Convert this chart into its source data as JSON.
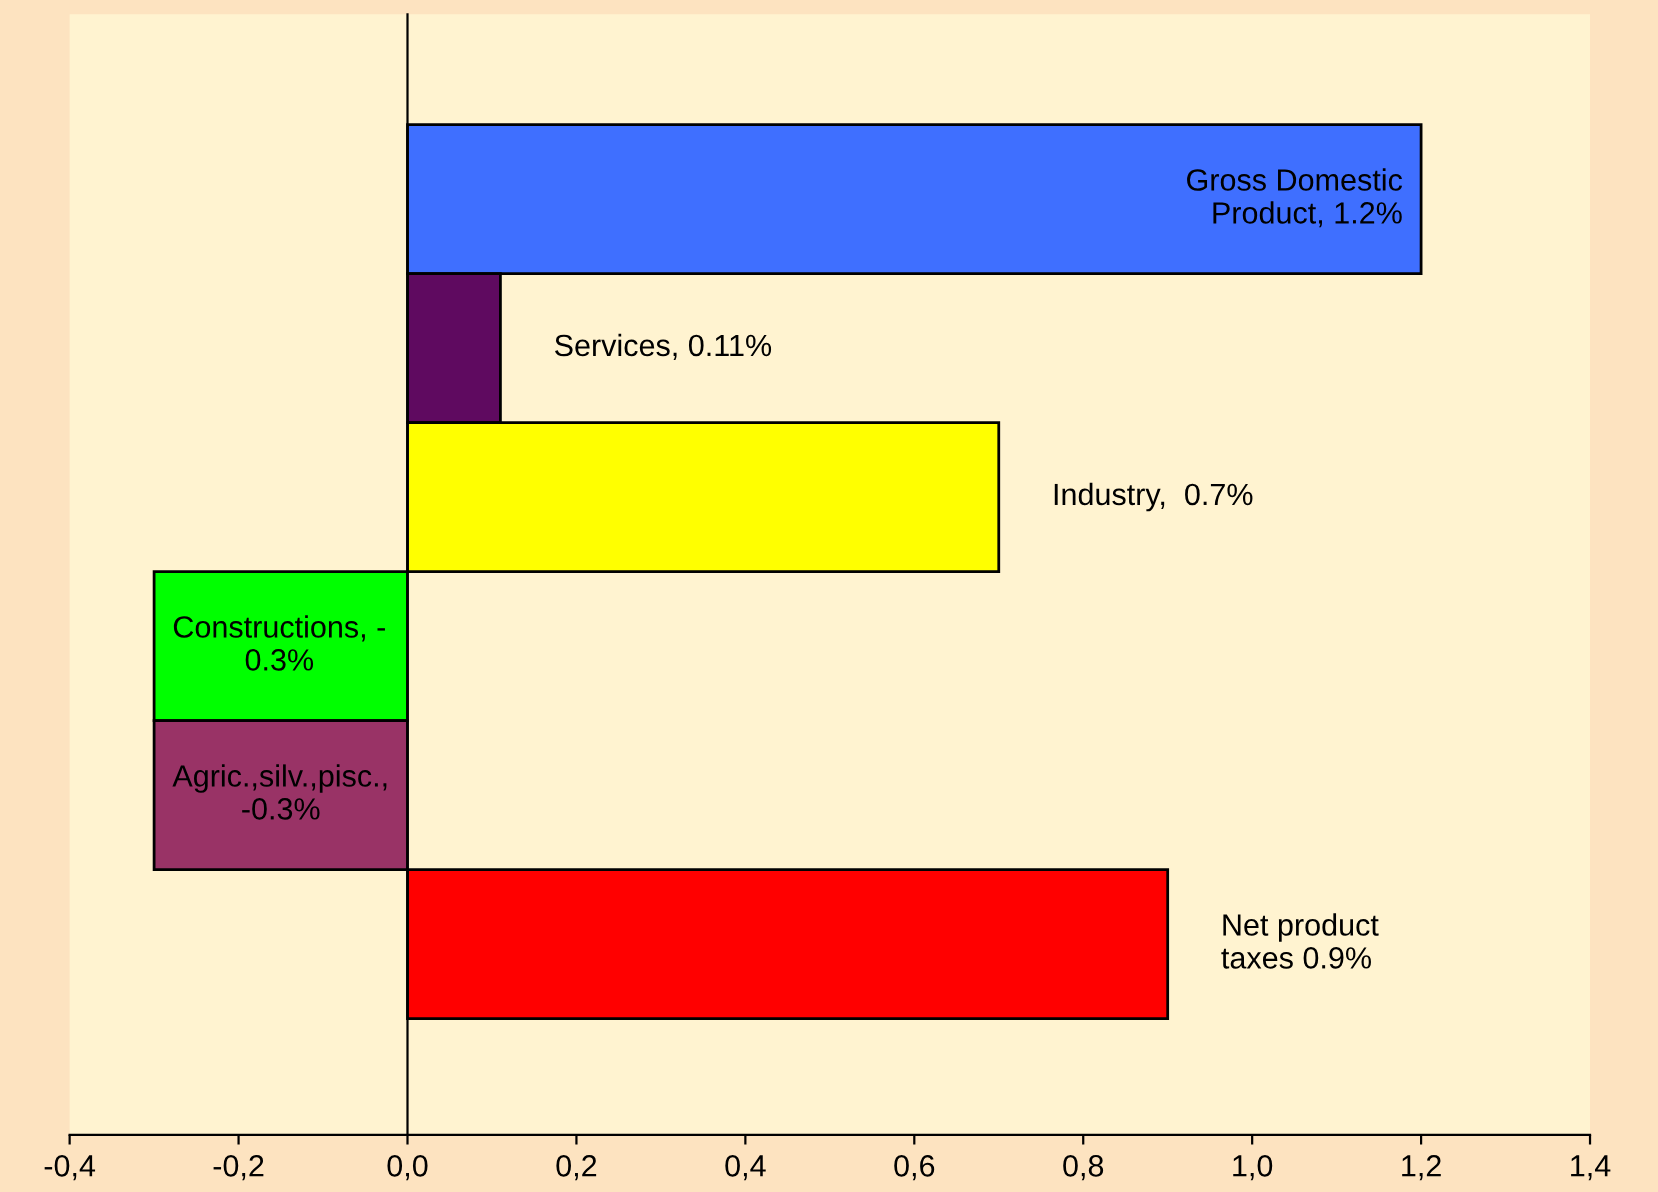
{
  "chart_data": {
    "type": "bar",
    "orientation": "horizontal",
    "categories": [
      "Gross Domestic\nProduct, 1.2%",
      "Services, 0.11%",
      "Industry,  0.7%",
      "Constructions, -\n0.3%",
      "Agric.,silv.,pisc.,\n-0.3%",
      "Net product\ntaxes 0.9%"
    ],
    "values": [
      1.2,
      0.11,
      0.7,
      -0.3,
      -0.3,
      0.9
    ],
    "colors": [
      "#3f6fff",
      "#5f0a60",
      "#ffff00",
      "#00ff00",
      "#993366",
      "#ff0000"
    ],
    "xlim": [
      -0.4,
      1.4
    ],
    "xticks": [
      {
        "value": -0.4,
        "label": "-0,4"
      },
      {
        "value": -0.2,
        "label": "-0,2"
      },
      {
        "value": 0,
        "label": "0,0"
      },
      {
        "value": 0.2,
        "label": "0,2"
      },
      {
        "value": 0.4,
        "label": "0,4"
      },
      {
        "value": 0.6,
        "label": "0,6"
      },
      {
        "value": 0.8,
        "label": "0,8"
      },
      {
        "value": 1.0,
        "label": "1,0"
      },
      {
        "value": 1.2,
        "label": "1,2"
      },
      {
        "value": 1.4,
        "label": "1,4"
      }
    ],
    "legend": false
  }
}
